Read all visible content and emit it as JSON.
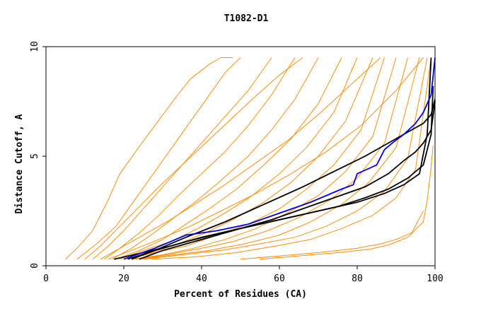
{
  "chart_data": {
    "type": "line",
    "title": "T1082-D1",
    "xlabel": "Percent of Residues (CA)",
    "ylabel": "Distance Cutoff, A",
    "xlim": [
      0,
      100
    ],
    "ylim": [
      0,
      10
    ],
    "xticks": [
      0,
      20,
      40,
      60,
      80,
      100
    ],
    "yticks": [
      0,
      5,
      10
    ],
    "grid": false,
    "legend": "none",
    "colors": {
      "background_models": "#ff8c00",
      "highlight_blue": "#0000ee",
      "highlight_black": "#000000"
    },
    "series": [
      {
        "values_x": [
          5,
          8,
          12,
          16,
          19,
          23,
          28,
          33,
          37,
          42,
          45,
          48
        ],
        "values_y": [
          0.3,
          0.8,
          1.6,
          3.0,
          4.2,
          5.2,
          6.4,
          7.6,
          8.5,
          9.2,
          9.5,
          9.5
        ],
        "color": "#ff8c00"
      },
      {
        "values_x": [
          8,
          13,
          18,
          22,
          26,
          30,
          34,
          38,
          42,
          46,
          50
        ],
        "values_y": [
          0.3,
          1.0,
          1.8,
          2.8,
          3.8,
          4.8,
          5.8,
          6.8,
          7.8,
          8.8,
          9.5
        ],
        "color": "#ff8c00"
      },
      {
        "values_x": [
          12,
          16,
          20,
          25,
          30,
          35,
          40,
          46,
          52,
          58
        ],
        "values_y": [
          0.3,
          0.9,
          1.6,
          2.6,
          3.6,
          4.6,
          5.6,
          6.8,
          8.0,
          9.5
        ],
        "color": "#ff8c00"
      },
      {
        "values_x": [
          15,
          19,
          24,
          29,
          34,
          40,
          46,
          52,
          58,
          64
        ],
        "values_y": [
          0.3,
          0.8,
          1.5,
          2.3,
          3.2,
          4.2,
          5.2,
          6.4,
          7.8,
          9.5
        ],
        "color": "#ff8c00"
      },
      {
        "values_x": [
          17,
          22,
          27,
          33,
          39,
          45,
          52,
          58,
          64,
          70
        ],
        "values_y": [
          0.3,
          0.8,
          1.4,
          2.2,
          3.0,
          3.9,
          5.0,
          6.2,
          7.6,
          9.5
        ],
        "color": "#ff8c00"
      },
      {
        "values_x": [
          18,
          24,
          30,
          36,
          42,
          49,
          56,
          63,
          70,
          76
        ],
        "values_y": [
          0.3,
          0.7,
          1.2,
          1.9,
          2.6,
          3.5,
          4.6,
          5.8,
          7.4,
          9.5
        ],
        "color": "#ff8c00"
      },
      {
        "values_x": [
          19,
          25,
          32,
          39,
          46,
          53,
          60,
          67,
          74,
          80
        ],
        "values_y": [
          0.3,
          0.7,
          1.1,
          1.7,
          2.4,
          3.2,
          4.2,
          5.4,
          7.0,
          9.5
        ],
        "color": "#ff8c00"
      },
      {
        "values_x": [
          20,
          27,
          34,
          41,
          48,
          56,
          63,
          70,
          77,
          84
        ],
        "values_y": [
          0.3,
          0.6,
          1.0,
          1.5,
          2.1,
          2.9,
          3.8,
          5.0,
          6.6,
          9.5
        ],
        "color": "#ff8c00"
      },
      {
        "values_x": [
          21,
          28,
          36,
          44,
          52,
          60,
          67,
          74,
          81,
          87
        ],
        "values_y": [
          0.3,
          0.6,
          0.9,
          1.4,
          1.9,
          2.6,
          3.5,
          4.6,
          6.2,
          9.5
        ],
        "color": "#ff8c00"
      },
      {
        "values_x": [
          22,
          30,
          38,
          46,
          54,
          62,
          70,
          77,
          84,
          90
        ],
        "values_y": [
          0.3,
          0.5,
          0.8,
          1.2,
          1.7,
          2.4,
          3.2,
          4.3,
          5.9,
          9.5
        ],
        "color": "#ff8c00"
      },
      {
        "values_x": [
          23,
          31,
          40,
          48,
          57,
          65,
          73,
          80,
          87,
          93
        ],
        "values_y": [
          0.3,
          0.5,
          0.8,
          1.1,
          1.6,
          2.2,
          3.0,
          4.0,
          5.6,
          9.5
        ],
        "color": "#ff8c00"
      },
      {
        "values_x": [
          24,
          33,
          42,
          51,
          60,
          68,
          76,
          83,
          90,
          96
        ],
        "values_y": [
          0.3,
          0.5,
          0.7,
          1.0,
          1.4,
          2.0,
          2.8,
          3.8,
          5.4,
          9.5
        ],
        "color": "#ff8c00"
      },
      {
        "values_x": [
          25,
          35,
          45,
          55,
          64,
          72,
          80,
          87,
          93,
          98
        ],
        "values_y": [
          0.3,
          0.5,
          0.7,
          1.0,
          1.3,
          1.8,
          2.5,
          3.4,
          4.9,
          9.5
        ],
        "color": "#ff8c00"
      },
      {
        "values_x": [
          27,
          38,
          49,
          59,
          68,
          76,
          84,
          90,
          95,
          99
        ],
        "values_y": [
          0.3,
          0.4,
          0.6,
          0.9,
          1.2,
          1.7,
          2.3,
          3.1,
          4.4,
          9.5
        ],
        "color": "#ff8c00"
      },
      {
        "values_x": [
          10,
          14,
          19,
          24,
          29,
          35,
          41,
          47,
          53,
          60,
          66
        ],
        "values_y": [
          0.3,
          0.9,
          1.8,
          2.7,
          3.6,
          4.6,
          5.6,
          6.6,
          7.6,
          8.7,
          9.5
        ],
        "color": "#ff8c00"
      },
      {
        "values_x": [
          14,
          19,
          25,
          32,
          39,
          46,
          54,
          62,
          70,
          78,
          86
        ],
        "values_y": [
          0.3,
          0.8,
          1.4,
          2.1,
          2.9,
          3.7,
          4.7,
          5.7,
          6.9,
          8.2,
          9.5
        ],
        "color": "#ff8c00"
      },
      {
        "values_x": [
          16,
          22,
          29,
          37,
          45,
          54,
          63,
          72,
          81,
          90,
          97
        ],
        "values_y": [
          0.3,
          0.7,
          1.2,
          1.8,
          2.5,
          3.3,
          4.2,
          5.2,
          6.4,
          8.0,
          9.5
        ],
        "color": "#ff8c00"
      },
      {
        "values_x": [
          50,
          60,
          70,
          80,
          86,
          90,
          94,
          97
        ],
        "values_y": [
          0.3,
          0.45,
          0.6,
          0.8,
          1.0,
          1.2,
          1.5,
          2.5
        ],
        "color": "#ff8c00"
      },
      {
        "values_x": [
          55,
          65,
          75,
          83,
          88,
          93,
          97,
          98,
          99,
          99.5
        ],
        "values_y": [
          0.3,
          0.45,
          0.6,
          0.75,
          0.95,
          1.3,
          2.0,
          3.0,
          4.5,
          5.5
        ],
        "color": "#ff8c00"
      },
      {
        "values_x": [
          17.5,
          25,
          32,
          40,
          50,
          60,
          70,
          80,
          87,
          92,
          96,
          98,
          99
        ],
        "values_y": [
          0.3,
          0.6,
          0.9,
          1.3,
          1.7,
          2.1,
          2.5,
          2.9,
          3.3,
          3.7,
          4.2,
          6.0,
          9.5
        ],
        "color": "#000000"
      },
      {
        "values_x": [
          21,
          28,
          36,
          45,
          55,
          65,
          75,
          82,
          88,
          93,
          97,
          99,
          99.5
        ],
        "values_y": [
          0.3,
          0.7,
          1.1,
          1.5,
          1.9,
          2.3,
          2.7,
          3.1,
          3.5,
          4.0,
          4.6,
          6.0,
          8.2
        ],
        "color": "#000000"
      },
      {
        "values_x": [
          24,
          30,
          36,
          42,
          50,
          58,
          66,
          74,
          82,
          88,
          92,
          95,
          97,
          99,
          100
        ],
        "values_y": [
          0.3,
          0.7,
          1.0,
          1.3,
          1.7,
          2.1,
          2.6,
          3.1,
          3.6,
          4.2,
          4.8,
          5.2,
          5.6,
          6.2,
          7.5
        ],
        "color": "#000000"
      },
      {
        "values_x": [
          22,
          28,
          36,
          46,
          56,
          66,
          74,
          82,
          88,
          93,
          97,
          99,
          100
        ],
        "values_y": [
          0.3,
          0.7,
          1.3,
          2.0,
          2.8,
          3.6,
          4.3,
          5.0,
          5.6,
          6.1,
          6.5,
          6.9,
          7.6
        ],
        "color": "#000000"
      },
      {
        "values_x": [
          20,
          28,
          36,
          44,
          52,
          60,
          68,
          76,
          79,
          80,
          85,
          87,
          89,
          92,
          95,
          97,
          99,
          100
        ],
        "values_y": [
          0.3,
          0.8,
          1.4,
          1.6,
          1.9,
          2.4,
          2.9,
          3.5,
          3.7,
          4.2,
          4.6,
          5.3,
          5.6,
          6.0,
          6.5,
          7.0,
          7.8,
          9.5
        ],
        "color": "#0000ee"
      }
    ]
  }
}
